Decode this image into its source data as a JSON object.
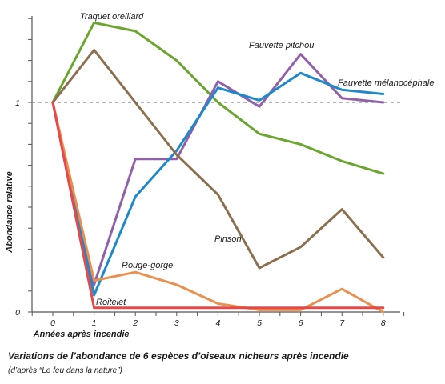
{
  "chart_data": {
    "type": "line",
    "title": "Variations de l’abondance de 6 espèces d’oiseaux nicheurs après incendie",
    "subtitle": "(d’après “Le feu dans la nature”)",
    "xlabel": "Années après incendie",
    "ylabel": "Abondance relative",
    "x": [
      0,
      1,
      2,
      3,
      4,
      5,
      6,
      7,
      8
    ],
    "x_tick_labels": [
      "0",
      "1",
      "2",
      "3",
      "4",
      "5",
      "6",
      "7",
      "8"
    ],
    "y_tick_labels": [
      {
        "value": 0,
        "label": "0"
      },
      {
        "value": 1,
        "label": "1"
      }
    ],
    "xlim": [
      -0.5,
      8.3
    ],
    "ylim": [
      0,
      1.4
    ],
    "reference_line": {
      "y": 1,
      "style": "dashed",
      "color": "#888888"
    },
    "legend": "labels placed next to lines",
    "series": [
      {
        "name": "Traquet oreillard",
        "color": "#6aa52f",
        "values": [
          1,
          1.38,
          1.34,
          1.2,
          1.0,
          0.85,
          0.8,
          0.72,
          0.66
        ]
      },
      {
        "name": "Fauvette pitchou",
        "color": "#9060aa",
        "values": [
          1,
          0.13,
          0.73,
          0.73,
          1.1,
          0.98,
          1.23,
          1.02,
          1.0
        ]
      },
      {
        "name": "Fauvette mélanocéphale",
        "color": "#1e88c8",
        "values": [
          1,
          0.08,
          0.55,
          0.77,
          1.07,
          1.01,
          1.14,
          1.06,
          1.04
        ]
      },
      {
        "name": "Pinson",
        "color": "#8b6f4e",
        "values": [
          1,
          1.25,
          1.0,
          0.75,
          0.56,
          0.21,
          0.31,
          0.49,
          0.26
        ]
      },
      {
        "name": "Rouge-gorge",
        "color": "#e89050",
        "values": [
          1,
          0.15,
          0.19,
          0.13,
          0.04,
          0.01,
          0.01,
          0.11,
          0.0
        ]
      },
      {
        "name": "Roitelet",
        "color": "#e84848",
        "values": [
          1,
          0.02,
          0.02,
          0.02,
          0.02,
          0.02,
          0.02,
          0.02,
          0.02
        ]
      }
    ]
  }
}
